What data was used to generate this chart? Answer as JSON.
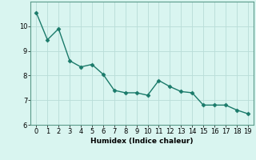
{
  "x": [
    0,
    1,
    2,
    3,
    4,
    5,
    6,
    7,
    8,
    9,
    10,
    11,
    12,
    13,
    14,
    15,
    16,
    17,
    18,
    19
  ],
  "y": [
    10.55,
    9.45,
    9.9,
    8.6,
    8.35,
    8.45,
    8.05,
    7.4,
    7.3,
    7.3,
    7.2,
    7.8,
    7.55,
    7.35,
    7.3,
    6.8,
    6.8,
    6.8,
    6.6,
    6.45
  ],
  "line_color": "#1a7a6a",
  "marker": "D",
  "marker_size": 2.5,
  "line_width": 1.0,
  "bg_color": "#d9f5f0",
  "grid_color": "#b8ddd8",
  "xlabel": "Humidex (Indice chaleur)",
  "ylim": [
    6,
    11
  ],
  "xlim": [
    -0.5,
    19.5
  ],
  "yticks": [
    6,
    7,
    8,
    9,
    10
  ],
  "xticks": [
    0,
    1,
    2,
    3,
    4,
    5,
    6,
    7,
    8,
    9,
    10,
    11,
    12,
    13,
    14,
    15,
    16,
    17,
    18,
    19
  ],
  "label_fontsize": 6.5,
  "tick_fontsize": 6.0,
  "spine_color": "#5a9a8a"
}
